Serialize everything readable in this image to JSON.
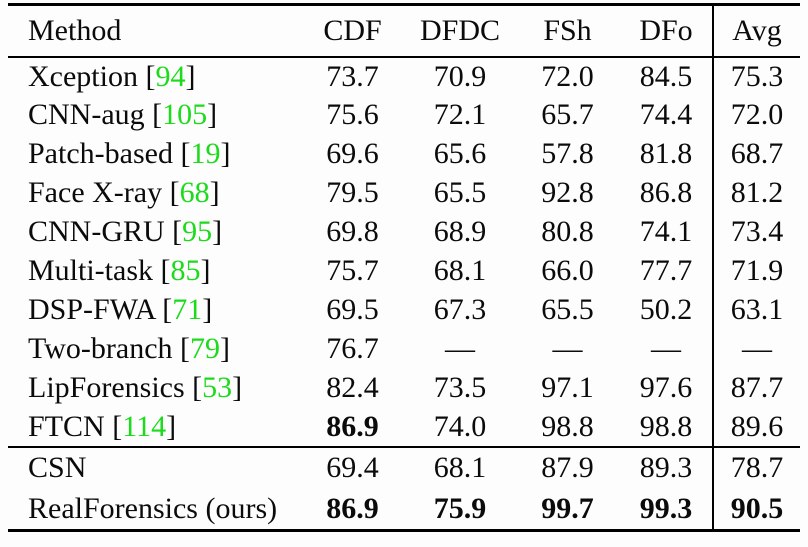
{
  "colors": {
    "citation_green": "#1bdb1b",
    "text": "#0b0b0b",
    "rule": "#000000",
    "background": "#fdfdfd"
  },
  "table": {
    "columns": [
      "Method",
      "CDF",
      "DFDC",
      "FSh",
      "DFo",
      "Avg"
    ],
    "missing_value": "—",
    "sections": [
      {
        "rows": [
          {
            "label": "Xception",
            "cite": "94",
            "values": [
              "73.7",
              "70.9",
              "72.0",
              "84.5",
              "75.3"
            ],
            "bold": [
              false,
              false,
              false,
              false,
              false
            ]
          },
          {
            "label": "CNN-aug",
            "cite": "105",
            "values": [
              "75.6",
              "72.1",
              "65.7",
              "74.4",
              "72.0"
            ],
            "bold": [
              false,
              false,
              false,
              false,
              false
            ]
          },
          {
            "label": "Patch-based",
            "cite": "19",
            "values": [
              "69.6",
              "65.6",
              "57.8",
              "81.8",
              "68.7"
            ],
            "bold": [
              false,
              false,
              false,
              false,
              false
            ]
          },
          {
            "label": "Face X-ray",
            "cite": "68",
            "values": [
              "79.5",
              "65.5",
              "92.8",
              "86.8",
              "81.2"
            ],
            "bold": [
              false,
              false,
              false,
              false,
              false
            ]
          },
          {
            "label": "CNN-GRU",
            "cite": "95",
            "values": [
              "69.8",
              "68.9",
              "80.8",
              "74.1",
              "73.4"
            ],
            "bold": [
              false,
              false,
              false,
              false,
              false
            ]
          },
          {
            "label": "Multi-task",
            "cite": "85",
            "values": [
              "75.7",
              "68.1",
              "66.0",
              "77.7",
              "71.9"
            ],
            "bold": [
              false,
              false,
              false,
              false,
              false
            ]
          },
          {
            "label": "DSP-FWA",
            "cite": "71",
            "values": [
              "69.5",
              "67.3",
              "65.5",
              "50.2",
              "63.1"
            ],
            "bold": [
              false,
              false,
              false,
              false,
              false
            ]
          },
          {
            "label": "Two-branch",
            "cite": "79",
            "values": [
              "76.7",
              "—",
              "—",
              "—",
              "—"
            ],
            "bold": [
              false,
              false,
              false,
              false,
              false
            ]
          },
          {
            "label": "LipForensics",
            "cite": "53",
            "values": [
              "82.4",
              "73.5",
              "97.1",
              "97.6",
              "87.7"
            ],
            "bold": [
              false,
              false,
              false,
              false,
              false
            ]
          },
          {
            "label": "FTCN",
            "cite": "114",
            "values": [
              "86.9",
              "74.0",
              "98.8",
              "98.8",
              "89.6"
            ],
            "bold": [
              true,
              false,
              false,
              false,
              false
            ]
          }
        ]
      },
      {
        "rows": [
          {
            "label": "CSN",
            "cite": null,
            "values": [
              "69.4",
              "68.1",
              "87.9",
              "89.3",
              "78.7"
            ],
            "bold": [
              false,
              false,
              false,
              false,
              false
            ]
          },
          {
            "label": "RealForensics (ours)",
            "cite": null,
            "values": [
              "86.9",
              "75.9",
              "99.7",
              "99.3",
              "90.5"
            ],
            "bold": [
              true,
              true,
              true,
              true,
              true
            ]
          }
        ]
      }
    ]
  }
}
